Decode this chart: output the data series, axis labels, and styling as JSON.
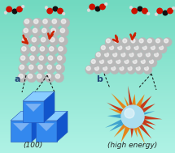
{
  "bg_color": "#70dcc0",
  "bg_color2": "#a8edd8",
  "label_a": "a",
  "label_b": "b",
  "label_100": "(100)",
  "label_high_energy": "(high energy)",
  "label_fontsize": 6.5,
  "cube_color_front": "#3388ee",
  "cube_color_top": "#88ccff",
  "cube_color_right": "#1155cc",
  "sphere_color": "#b8b8b8",
  "sphere_edge": "#888888",
  "sphere_highlight": "#f5f5f5",
  "arrow_color": "#cc2200",
  "mol_O_color": "#cc1100",
  "mol_C_color": "#111111",
  "mol_H_color": "#dddddd",
  "star_red": "#cc2200",
  "star_orange": "#ee7700",
  "star_blue": "#3399cc",
  "figsize": [
    2.15,
    1.89
  ],
  "dpi": 100
}
